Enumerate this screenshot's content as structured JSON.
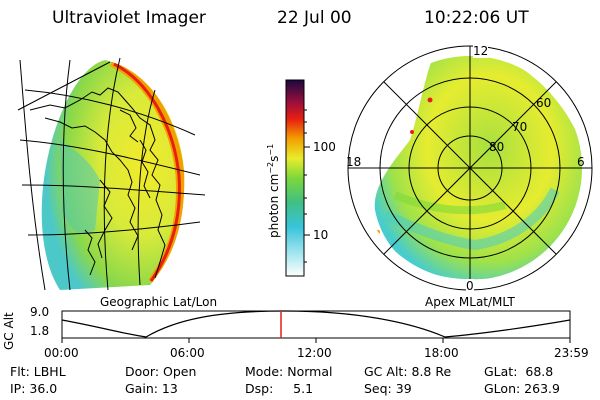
{
  "header": {
    "title": "Ultraviolet Imager",
    "date": "22 Jul 00",
    "time": "10:22:06 UT"
  },
  "colorbar": {
    "unit_label": "photon cm",
    "unit_exp1": "−2",
    "unit_mid": "s",
    "unit_exp2": "−1",
    "ticks": [
      "100",
      "10"
    ]
  },
  "left_panel": {
    "caption": "Geographic Lat/Lon"
  },
  "right_panel": {
    "caption": "Apex MLat/MLT",
    "clock_labels": [
      "12",
      "18",
      "6",
      "0"
    ],
    "lat_labels": [
      "60",
      "70",
      "80"
    ]
  },
  "timeline": {
    "axis_label": "GC Alt",
    "y_ticks": [
      "9.0",
      "1.8"
    ],
    "x_ticks": [
      "00:00",
      "06:00",
      "12:00",
      "18:00",
      "23:59"
    ],
    "marker_color": "#e02010"
  },
  "footer": {
    "filter": "Flt: LBHL",
    "door": "Door: Open",
    "mode": "Mode: Normal",
    "gc_alt": "GC Alt: 8.8 Re",
    "glat": "GLat:  68.8",
    "ip": "IP: 36.0",
    "gain": "Gain: 13",
    "dsp": "Dsp:     5.1",
    "seq": "Seq: 39",
    "glon": "GLon: 263.9"
  },
  "colors": {
    "low": "#40c8e0",
    "mid": "#7ed83a",
    "high": "#f2e82a",
    "peak": "#e82010"
  }
}
